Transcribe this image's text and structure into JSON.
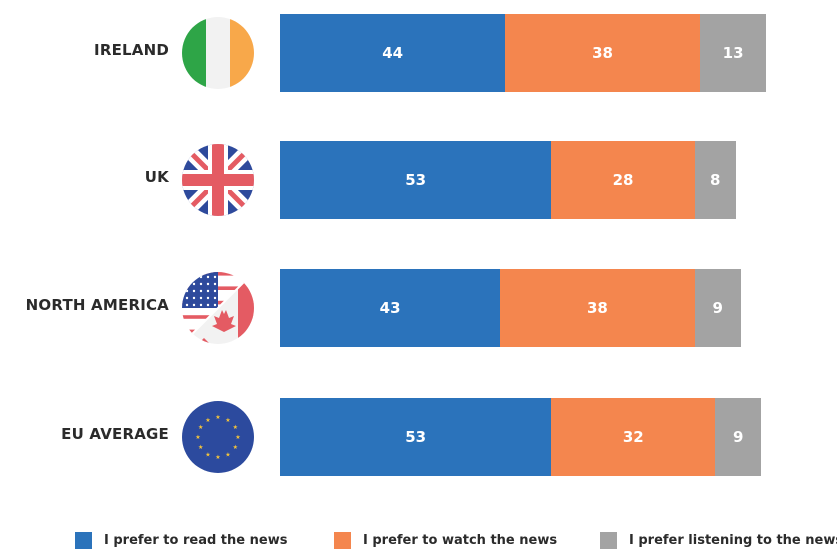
{
  "chart_data": {
    "type": "bar",
    "orientation": "horizontal",
    "stacked": true,
    "categories": [
      "IRELAND",
      "UK",
      "NORTH AMERICA",
      "EU AVERAGE"
    ],
    "series": [
      {
        "name": "I prefer to read the news",
        "color": "#2b73bb",
        "values": [
          44,
          53,
          43,
          53
        ]
      },
      {
        "name": "I prefer to watch the news",
        "color": "#f4864e",
        "values": [
          38,
          28,
          38,
          32
        ]
      },
      {
        "name": "I prefer listening to the news",
        "color": "#a3a3a3",
        "values": [
          13,
          8,
          9,
          9
        ]
      }
    ],
    "flag_icons": [
      "ireland-flag-icon",
      "uk-flag-icon",
      "north-america-flag-icon",
      "eu-flag-icon"
    ],
    "grid": false,
    "legend_position": "bottom",
    "title": "",
    "xlabel": "",
    "ylabel": ""
  }
}
